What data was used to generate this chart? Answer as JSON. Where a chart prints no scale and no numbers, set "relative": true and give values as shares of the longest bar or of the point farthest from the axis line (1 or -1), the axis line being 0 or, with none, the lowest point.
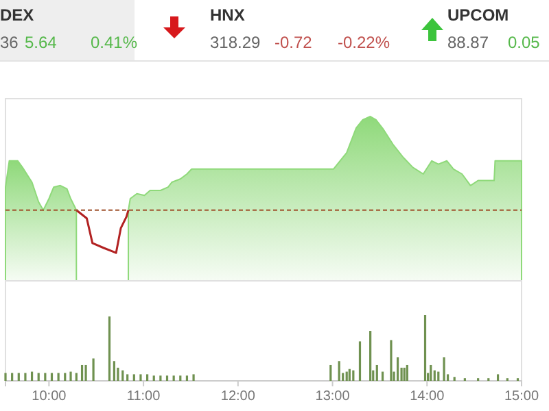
{
  "chart_data": [
    {
      "type": "other",
      "annotations": [
        "DEX",
        "36",
        "5.64",
        "0.41%",
        "HNX",
        "318.29",
        "-0.72",
        "-0.22%",
        "UPCOM",
        "88.87",
        "0.05"
      ]
    },
    {
      "type": "area",
      "relative": true,
      "xlim": [
        9.54,
        15.0
      ],
      "ref_lines": [
        {
          "axis": "y",
          "value": 0.43,
          "color": "#a0522d",
          "line_style": "dashed"
        }
      ],
      "series": [
        {
          "type": "area",
          "color": "#8fd97a",
          "x": [
            9.54,
            9.58,
            9.67,
            9.72,
            9.82,
            9.89,
            9.94,
            10.0,
            10.05,
            10.12,
            10.19,
            10.23,
            10.29
          ],
          "values": [
            0.57,
            0.73,
            0.73,
            0.69,
            0.6,
            0.48,
            0.43,
            0.5,
            0.57,
            0.58,
            0.56,
            0.5,
            0.43
          ]
        },
        {
          "type": "area",
          "color": "#8fd97a",
          "x": [
            10.84,
            10.86,
            10.93,
            11.01,
            11.07,
            11.18,
            11.26,
            11.3,
            11.39,
            11.46,
            11.51,
            13.01,
            13.15,
            13.25,
            13.32,
            13.4,
            13.46,
            13.54,
            13.64,
            13.75,
            13.85,
            13.96,
            14.05,
            14.12,
            14.21,
            14.28,
            14.37,
            14.46,
            14.54,
            14.71,
            14.72,
            15.0
          ],
          "values": [
            0.43,
            0.5,
            0.53,
            0.52,
            0.55,
            0.55,
            0.57,
            0.6,
            0.62,
            0.65,
            0.68,
            0.68,
            0.78,
            0.93,
            0.98,
            1.0,
            0.98,
            0.92,
            0.83,
            0.75,
            0.69,
            0.65,
            0.73,
            0.71,
            0.73,
            0.68,
            0.65,
            0.58,
            0.61,
            0.61,
            0.73,
            0.73
          ]
        },
        {
          "type": "line",
          "color": "#b22222",
          "x": [
            10.29,
            10.4,
            10.46,
            10.58,
            10.67,
            10.71,
            10.76,
            10.82,
            10.84
          ],
          "values": [
            0.43,
            0.38,
            0.23,
            0.2,
            0.18,
            0.17,
            0.32,
            0.39,
            0.43
          ]
        }
      ]
    },
    {
      "type": "bar",
      "relative": true,
      "color": "#6f9150",
      "xlim": [
        9.54,
        15.0
      ],
      "xticks": [
        {
          "value": 10,
          "label": "10:00"
        },
        {
          "value": 11,
          "label": "11:00"
        },
        {
          "value": 12,
          "label": "12:00"
        },
        {
          "value": 13,
          "label": "13:00"
        },
        {
          "value": 14,
          "label": "14:00"
        },
        {
          "value": 15,
          "label": "15:00"
        }
      ],
      "tick_labels": "x",
      "x": [
        9.54,
        9.61,
        9.68,
        9.75,
        9.82,
        9.89,
        9.96,
        10.03,
        10.1,
        10.17,
        10.23,
        10.29,
        10.35,
        10.39,
        10.47,
        10.64,
        10.69,
        10.73,
        10.78,
        10.83,
        10.9,
        10.97,
        11.04,
        11.11,
        11.18,
        11.25,
        11.32,
        11.39,
        11.46,
        11.53,
        12.98,
        13.07,
        13.11,
        13.15,
        13.18,
        13.22,
        13.29,
        13.4,
        13.43,
        13.47,
        13.53,
        13.62,
        13.65,
        13.69,
        13.73,
        13.76,
        13.79,
        13.98,
        14.01,
        14.04,
        14.08,
        14.12,
        14.18,
        14.22,
        14.29,
        14.4,
        14.54,
        14.65,
        14.75,
        14.85,
        14.96
      ],
      "values": [
        0.12,
        0.12,
        0.12,
        0.12,
        0.14,
        0.12,
        0.12,
        0.12,
        0.12,
        0.12,
        0.14,
        0.12,
        0.24,
        0.24,
        0.34,
        0.98,
        0.3,
        0.2,
        0.16,
        0.1,
        0.1,
        0.1,
        0.1,
        0.08,
        0.08,
        0.08,
        0.08,
        0.08,
        0.08,
        0.1,
        0.24,
        0.3,
        0.12,
        0.14,
        0.18,
        0.16,
        0.6,
        0.76,
        0.16,
        0.24,
        0.14,
        0.62,
        0.14,
        0.36,
        0.2,
        0.2,
        0.24,
        1.0,
        0.12,
        0.24,
        0.16,
        0.14,
        0.36,
        0.1,
        0.06,
        0.04,
        0.04,
        0.04,
        0.1,
        0.04,
        0.04
      ]
    }
  ]
}
